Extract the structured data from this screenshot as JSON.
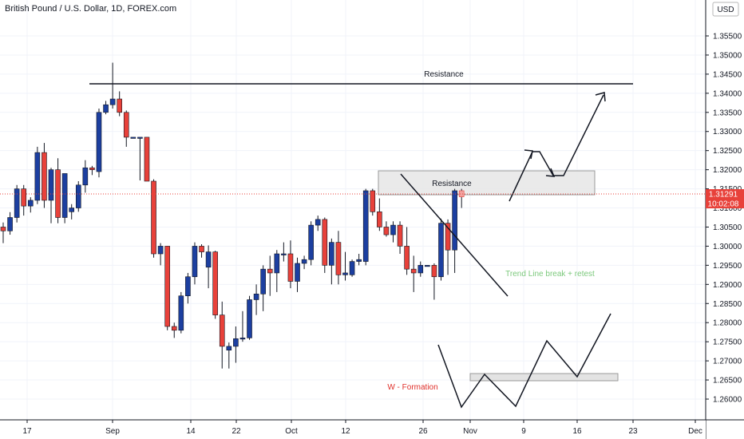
{
  "header": {
    "title": "British Pound / U.S. Dollar, 1D, FOREX.com"
  },
  "price_axis": {
    "currency": "USD",
    "current_price": "1.31291",
    "countdown": "10:02:08"
  },
  "colors": {
    "up": "#1c3fa0",
    "down": "#e8413a",
    "price_line": "#e8413a",
    "green_text": "#7cc97c",
    "red_text": "#e0302a",
    "box_fill": "#e6e6e6"
  },
  "annotations": {
    "resistance_top": "Resistance",
    "resistance_box": "Resistance",
    "trendline_note": "Trend Line break + retest",
    "w_formation": "W - Formation"
  },
  "chart_data": {
    "type": "candlestick",
    "title": "British Pound / U.S. Dollar, 1D, FOREX.com",
    "ylim": [
      1.26,
      1.36
    ],
    "y_ticks": [
      "1.26000",
      "1.26500",
      "1.27000",
      "1.27500",
      "1.28000",
      "1.28500",
      "1.29000",
      "1.29500",
      "1.30000",
      "1.30500",
      "1.31000",
      "1.31500",
      "1.32000",
      "1.32500",
      "1.33000",
      "1.33500",
      "1.34000",
      "1.34500",
      "1.35000",
      "1.35500"
    ],
    "x_ticks": [
      "17",
      "Sep",
      "14",
      "22",
      "Oct",
      "12",
      "26",
      "Nov",
      "9",
      "16",
      "23",
      "Dec"
    ],
    "candles": [
      [
        1.305,
        1.3062,
        1.3008,
        1.304
      ],
      [
        1.304,
        1.3089,
        1.303,
        1.3075
      ],
      [
        1.3075,
        1.316,
        1.3062,
        1.315
      ],
      [
        1.315,
        1.316,
        1.308,
        1.3105
      ],
      [
        1.3105,
        1.3128,
        1.3088,
        1.312
      ],
      [
        1.312,
        1.326,
        1.311,
        1.3245
      ],
      [
        1.3245,
        1.327,
        1.31,
        1.312
      ],
      [
        1.312,
        1.3205,
        1.306,
        1.32
      ],
      [
        1.32,
        1.323,
        1.306,
        1.3075
      ],
      [
        1.3075,
        1.318,
        1.306,
        1.319
      ],
      [
        1.309,
        1.311,
        1.307,
        1.31
      ],
      [
        1.31,
        1.317,
        1.309,
        1.316
      ],
      [
        1.316,
        1.3225,
        1.314,
        1.3205
      ],
      [
        1.3205,
        1.321,
        1.3186,
        1.32
      ],
      [
        1.3195,
        1.336,
        1.318,
        1.335
      ],
      [
        1.335,
        1.338,
        1.3345,
        1.337
      ],
      [
        1.337,
        1.348,
        1.336,
        1.3385
      ],
      [
        1.3385,
        1.3405,
        1.334,
        1.335
      ],
      [
        1.335,
        1.3355,
        1.326,
        1.3285
      ],
      [
        1.3285,
        1.3285,
        1.3285,
        1.3285
      ],
      [
        1.3285,
        1.3285,
        1.3172,
        1.3285
      ],
      [
        1.3285,
        1.3285,
        1.317,
        1.317
      ],
      [
        1.317,
        1.3175,
        1.297,
        1.298
      ],
      [
        1.298,
        1.3008,
        1.295,
        1.3
      ],
      [
        1.3,
        1.3,
        1.278,
        1.279
      ],
      [
        1.279,
        1.28,
        1.276,
        1.278
      ],
      [
        1.278,
        1.288,
        1.2772,
        1.287
      ],
      [
        1.287,
        1.293,
        1.285,
        1.292
      ],
      [
        1.292,
        1.301,
        1.29,
        1.3
      ],
      [
        1.3,
        1.3005,
        1.297,
        1.2985
      ],
      [
        1.2945,
        1.3002,
        1.289,
        1.2985
      ],
      [
        1.2985,
        1.2988,
        1.281,
        1.282
      ],
      [
        1.282,
        1.2855,
        1.268,
        1.2738
      ],
      [
        1.2728,
        1.2748,
        1.268,
        1.2738
      ],
      [
        1.2738,
        1.279,
        1.2695,
        1.2758
      ],
      [
        1.2758,
        1.283,
        1.275,
        1.276
      ],
      [
        1.276,
        1.287,
        1.2755,
        1.286
      ],
      [
        1.286,
        1.29,
        1.282,
        1.2875
      ],
      [
        1.2875,
        1.295,
        1.283,
        1.294
      ],
      [
        1.294,
        1.2975,
        1.287,
        1.293
      ],
      [
        1.293,
        1.299,
        1.288,
        1.298
      ],
      [
        1.298,
        1.301,
        1.296,
        1.298
      ],
      [
        1.298,
        1.3015,
        1.289,
        1.2908
      ],
      [
        1.2908,
        1.297,
        1.288,
        1.2955
      ],
      [
        1.2955,
        1.2975,
        1.294,
        1.2965
      ],
      [
        1.2965,
        1.3065,
        1.295,
        1.3055
      ],
      [
        1.3055,
        1.308,
        1.304,
        1.307
      ],
      [
        1.307,
        1.3075,
        1.293,
        1.295
      ],
      [
        1.295,
        1.302,
        1.29,
        1.301
      ],
      [
        1.301,
        1.304,
        1.29,
        1.2925
      ],
      [
        1.2925,
        1.2985,
        1.291,
        1.293
      ],
      [
        1.2925,
        1.2965,
        1.292,
        1.296
      ],
      [
        1.296,
        1.298,
        1.295,
        1.2965
      ],
      [
        1.296,
        1.315,
        1.295,
        1.3145
      ],
      [
        1.3145,
        1.315,
        1.308,
        1.309
      ],
      [
        1.309,
        1.3125,
        1.304,
        1.305
      ],
      [
        1.305,
        1.3065,
        1.3025,
        1.303
      ],
      [
        1.303,
        1.3065,
        1.301,
        1.3055
      ],
      [
        1.3055,
        1.3065,
        1.298,
        1.3
      ],
      [
        1.3,
        1.305,
        1.2925,
        1.294
      ],
      [
        1.294,
        1.2975,
        1.288,
        1.293
      ],
      [
        1.293,
        1.296,
        1.292,
        1.295
      ],
      [
        1.295,
        1.295,
        1.295,
        1.295
      ],
      [
        1.295,
        1.2955,
        1.286,
        1.292
      ],
      [
        1.292,
        1.3072,
        1.291,
        1.306
      ],
      [
        1.306,
        1.307,
        1.2925,
        1.299
      ],
      [
        1.299,
        1.315,
        1.293,
        1.3145
      ],
      [
        1.3145,
        1.315,
        1.31,
        1.3129
      ]
    ]
  }
}
